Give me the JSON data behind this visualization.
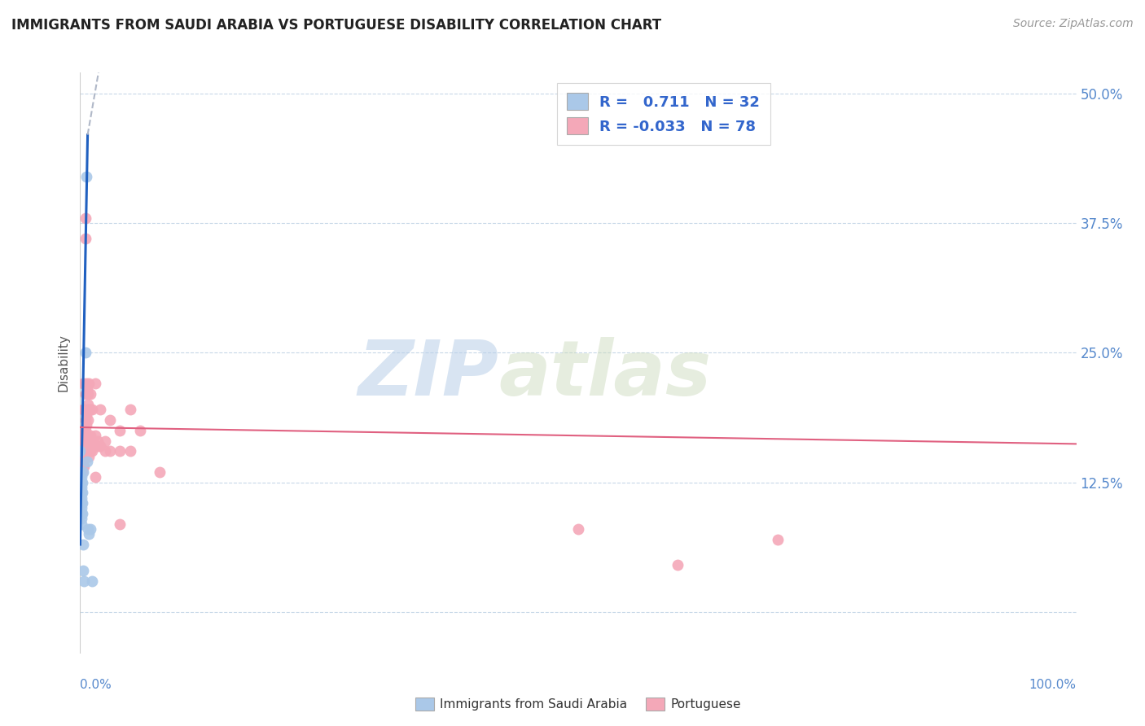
{
  "title": "IMMIGRANTS FROM SAUDI ARABIA VS PORTUGUESE DISABILITY CORRELATION CHART",
  "source": "Source: ZipAtlas.com",
  "ylabel": "Disability",
  "watermark_zip": "ZIP",
  "watermark_atlas": "atlas",
  "y_ticks": [
    0.0,
    0.125,
    0.25,
    0.375,
    0.5
  ],
  "y_tick_labels_right": [
    "",
    "12.5%",
    "25.0%",
    "37.5%",
    "50.0%"
  ],
  "x_range": [
    0.0,
    1.0
  ],
  "y_range": [
    -0.04,
    0.52
  ],
  "legend_R1": "0.711",
  "legend_N1": "32",
  "legend_R2": "-0.033",
  "legend_N2": "78",
  "saudi_color": "#aac8e8",
  "portuguese_color": "#f4a8b8",
  "saudi_line_color": "#2060c0",
  "portuguese_line_color": "#e06080",
  "trend_ext_color": "#b0b8c8",
  "background": "#ffffff",
  "grid_color": "#c8d8e8",
  "saudi_points": [
    [
      0.0,
      0.155
    ],
    [
      0.0,
      0.135
    ],
    [
      0.0,
      0.13
    ],
    [
      0.0,
      0.125
    ],
    [
      0.0,
      0.12
    ],
    [
      0.0,
      0.115
    ],
    [
      0.0,
      0.11
    ],
    [
      0.001,
      0.13
    ],
    [
      0.001,
      0.125
    ],
    [
      0.001,
      0.12
    ],
    [
      0.001,
      0.115
    ],
    [
      0.001,
      0.11
    ],
    [
      0.001,
      0.105
    ],
    [
      0.001,
      0.1
    ],
    [
      0.001,
      0.095
    ],
    [
      0.001,
      0.09
    ],
    [
      0.001,
      0.085
    ],
    [
      0.002,
      0.125
    ],
    [
      0.002,
      0.115
    ],
    [
      0.002,
      0.105
    ],
    [
      0.002,
      0.095
    ],
    [
      0.003,
      0.135
    ],
    [
      0.003,
      0.065
    ],
    [
      0.003,
      0.04
    ],
    [
      0.004,
      0.03
    ],
    [
      0.005,
      0.25
    ],
    [
      0.006,
      0.42
    ],
    [
      0.007,
      0.145
    ],
    [
      0.008,
      0.08
    ],
    [
      0.009,
      0.075
    ],
    [
      0.01,
      0.08
    ],
    [
      0.012,
      0.03
    ]
  ],
  "portuguese_points": [
    [
      0.001,
      0.16
    ],
    [
      0.001,
      0.145
    ],
    [
      0.001,
      0.14
    ],
    [
      0.001,
      0.135
    ],
    [
      0.002,
      0.175
    ],
    [
      0.002,
      0.16
    ],
    [
      0.002,
      0.155
    ],
    [
      0.002,
      0.145
    ],
    [
      0.002,
      0.14
    ],
    [
      0.002,
      0.135
    ],
    [
      0.003,
      0.22
    ],
    [
      0.003,
      0.195
    ],
    [
      0.003,
      0.17
    ],
    [
      0.003,
      0.165
    ],
    [
      0.003,
      0.155
    ],
    [
      0.003,
      0.15
    ],
    [
      0.003,
      0.145
    ],
    [
      0.003,
      0.14
    ],
    [
      0.004,
      0.195
    ],
    [
      0.004,
      0.17
    ],
    [
      0.004,
      0.165
    ],
    [
      0.004,
      0.155
    ],
    [
      0.004,
      0.15
    ],
    [
      0.004,
      0.14
    ],
    [
      0.005,
      0.38
    ],
    [
      0.005,
      0.36
    ],
    [
      0.005,
      0.21
    ],
    [
      0.005,
      0.185
    ],
    [
      0.005,
      0.175
    ],
    [
      0.005,
      0.165
    ],
    [
      0.006,
      0.22
    ],
    [
      0.006,
      0.19
    ],
    [
      0.006,
      0.18
    ],
    [
      0.006,
      0.17
    ],
    [
      0.006,
      0.155
    ],
    [
      0.007,
      0.215
    ],
    [
      0.007,
      0.195
    ],
    [
      0.007,
      0.165
    ],
    [
      0.007,
      0.16
    ],
    [
      0.007,
      0.155
    ],
    [
      0.008,
      0.21
    ],
    [
      0.008,
      0.2
    ],
    [
      0.008,
      0.185
    ],
    [
      0.008,
      0.165
    ],
    [
      0.008,
      0.155
    ],
    [
      0.009,
      0.22
    ],
    [
      0.009,
      0.195
    ],
    [
      0.009,
      0.16
    ],
    [
      0.009,
      0.15
    ],
    [
      0.01,
      0.21
    ],
    [
      0.01,
      0.195
    ],
    [
      0.01,
      0.17
    ],
    [
      0.01,
      0.16
    ],
    [
      0.01,
      0.155
    ],
    [
      0.012,
      0.195
    ],
    [
      0.012,
      0.165
    ],
    [
      0.012,
      0.155
    ],
    [
      0.015,
      0.13
    ],
    [
      0.015,
      0.17
    ],
    [
      0.015,
      0.22
    ],
    [
      0.018,
      0.165
    ],
    [
      0.018,
      0.16
    ],
    [
      0.02,
      0.195
    ],
    [
      0.02,
      0.16
    ],
    [
      0.025,
      0.155
    ],
    [
      0.025,
      0.165
    ],
    [
      0.03,
      0.185
    ],
    [
      0.03,
      0.155
    ],
    [
      0.04,
      0.175
    ],
    [
      0.04,
      0.155
    ],
    [
      0.04,
      0.085
    ],
    [
      0.05,
      0.195
    ],
    [
      0.05,
      0.155
    ],
    [
      0.06,
      0.175
    ],
    [
      0.08,
      0.135
    ],
    [
      0.5,
      0.08
    ],
    [
      0.6,
      0.045
    ],
    [
      0.7,
      0.07
    ]
  ],
  "saudi_trend": {
    "x_start": 0.0,
    "y_start": 0.065,
    "x_end": 0.0075,
    "y_end": 0.46
  },
  "saudi_trend_ext": {
    "x_start": 0.0075,
    "y_start": 0.46,
    "x_end": 0.022,
    "y_end": 0.54
  },
  "portuguese_trend": {
    "x_start": 0.0,
    "y_start": 0.178,
    "x_end": 1.0,
    "y_end": 0.162
  }
}
